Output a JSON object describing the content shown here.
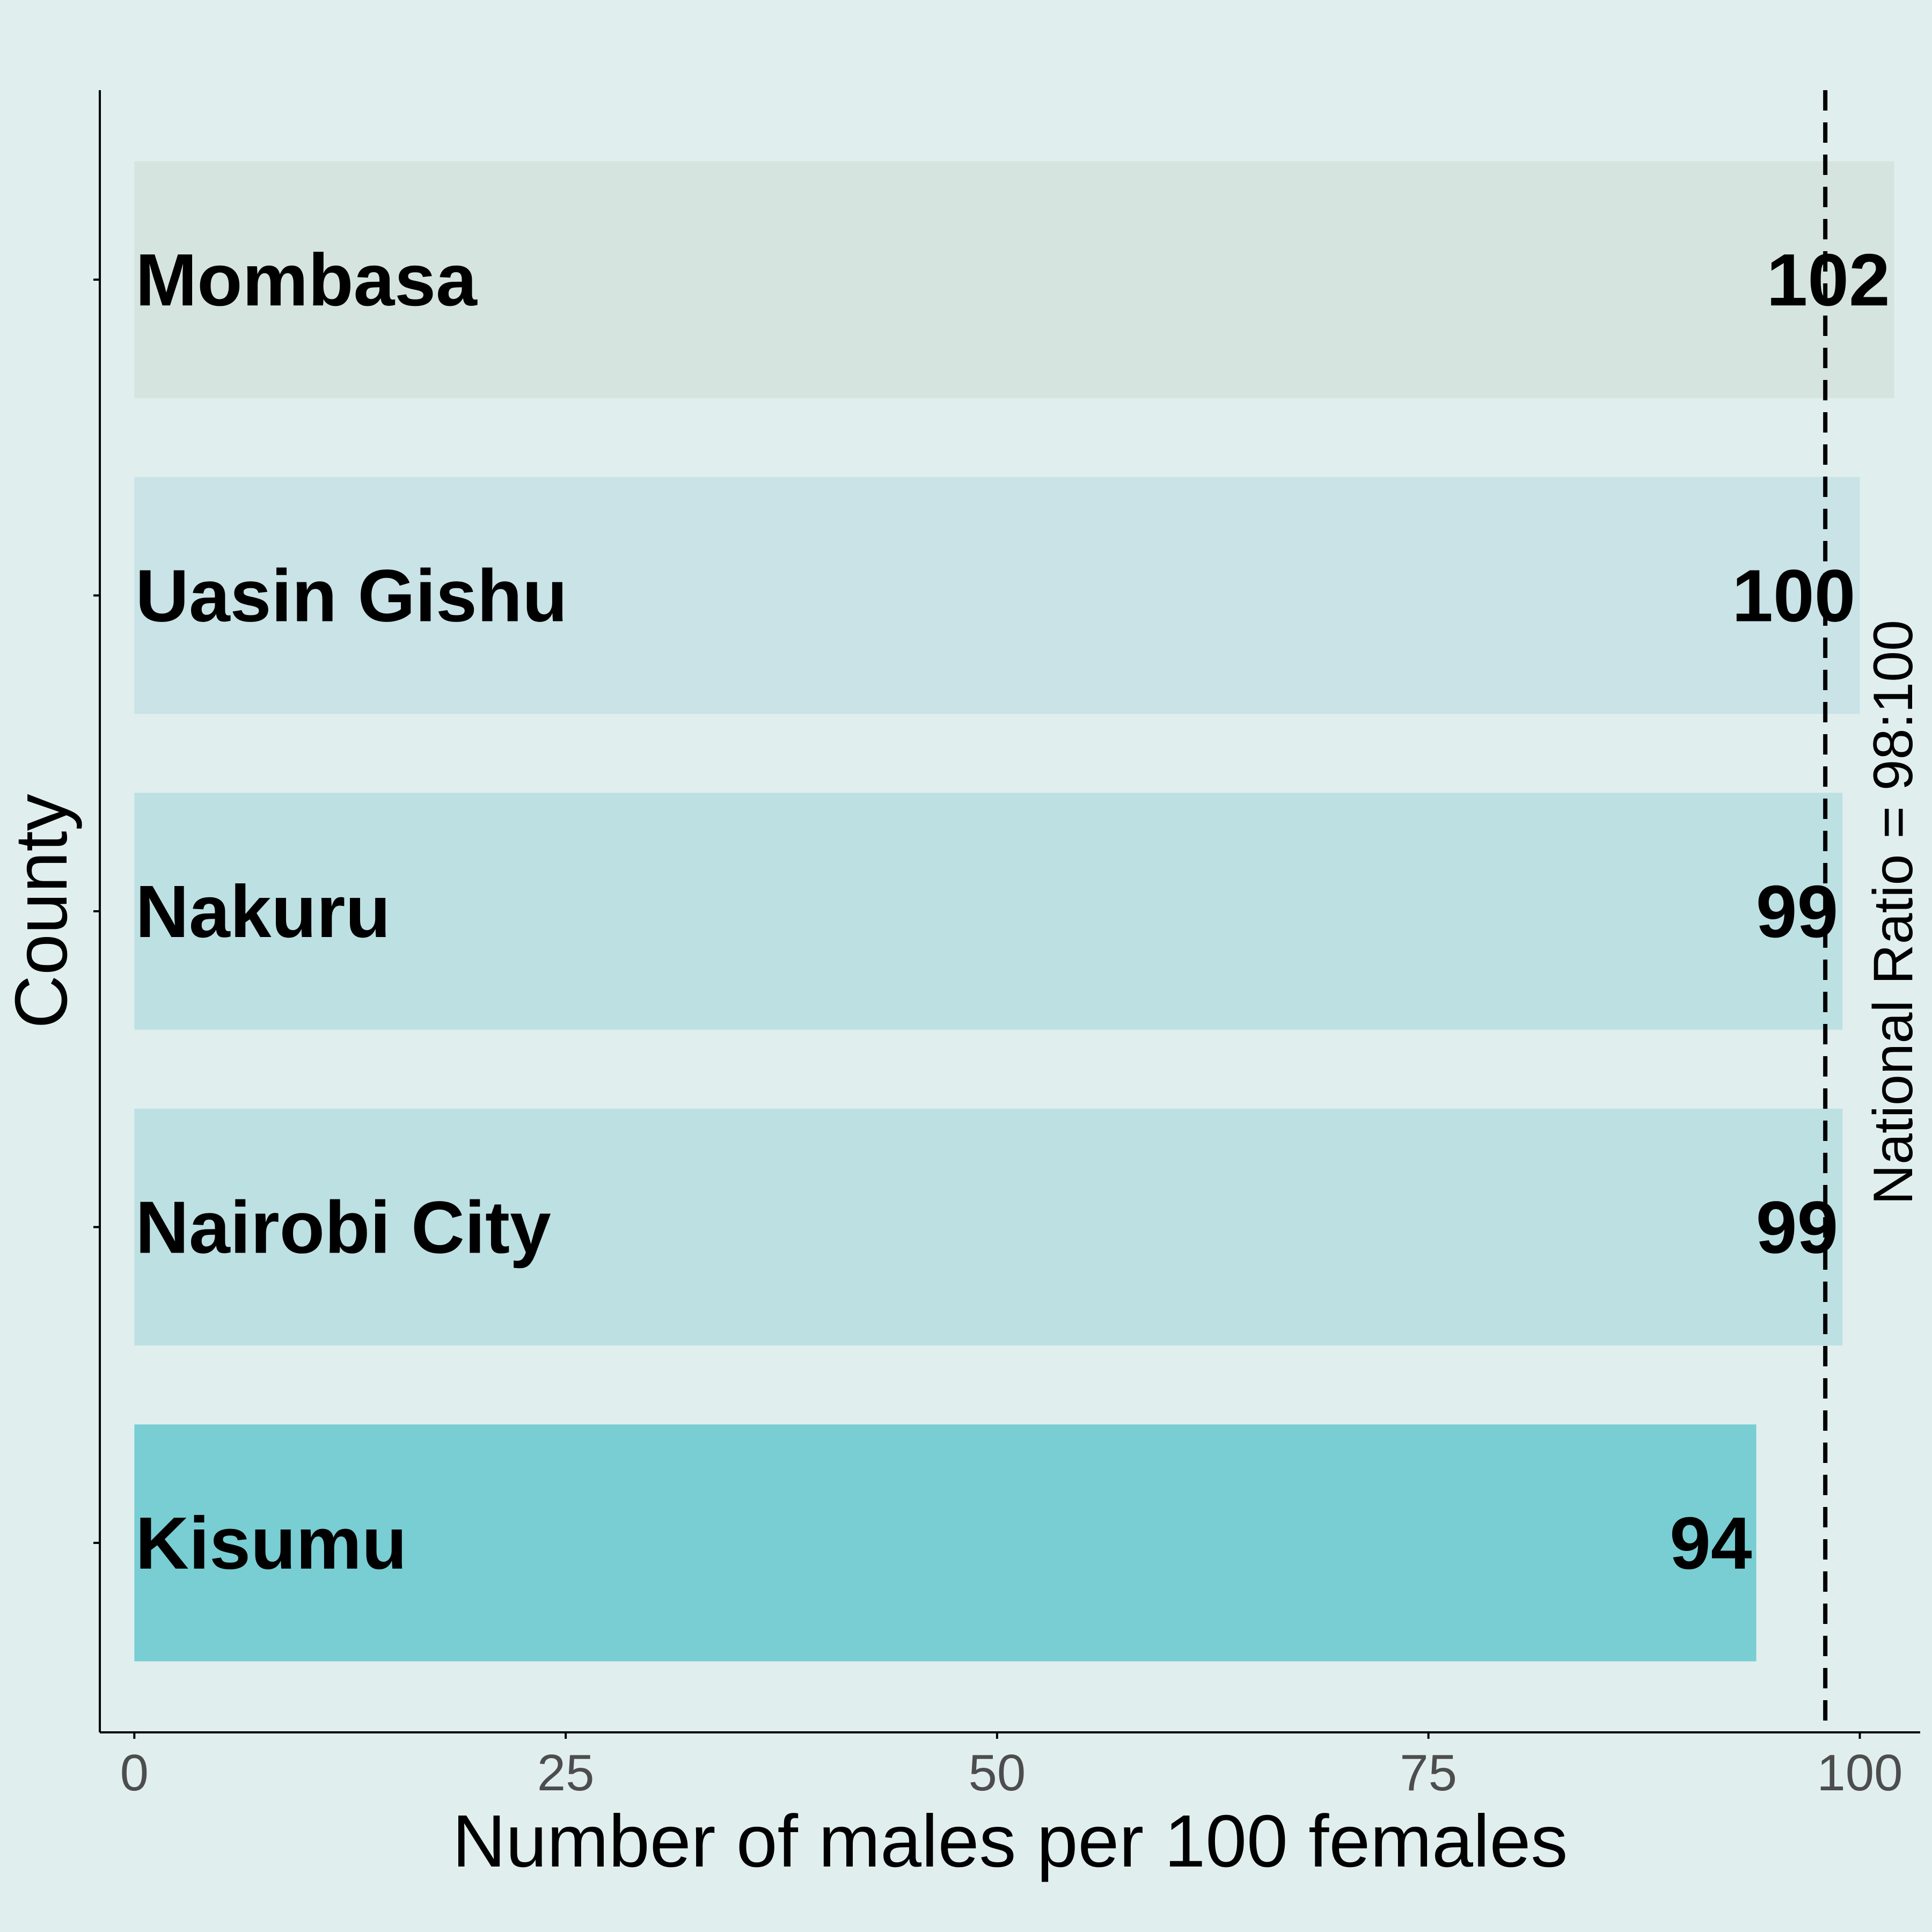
{
  "chart_data": {
    "type": "bar",
    "orientation": "horizontal",
    "categories": [
      "Mombasa",
      "Uasin Gishu",
      "Nakuru",
      "Nairobi City",
      "Kisumu"
    ],
    "values": [
      102,
      100,
      99,
      99,
      94
    ],
    "value_labels": [
      "102",
      "100",
      "99",
      "99",
      "94"
    ],
    "xlabel": "Number of males per 100 females",
    "ylabel": "County",
    "xlim": [
      -2,
      103.5
    ],
    "x_ticks": [
      0,
      25,
      50,
      75,
      100
    ],
    "x_tick_labels": [
      "0",
      "25",
      "50",
      "75",
      "100"
    ],
    "grid": false,
    "legend": "none",
    "bar_colors": [
      "#d5e4df",
      "#c9e3e7",
      "#bde0e3",
      "#bde0e3",
      "#78ced3"
    ],
    "reference_line": {
      "value": 98,
      "style": "dashed",
      "label": "National Ratio = 98:100"
    }
  },
  "colors": {
    "background": "#e0efee",
    "axis": "#000000",
    "tick_text": "#4d4d4d"
  }
}
